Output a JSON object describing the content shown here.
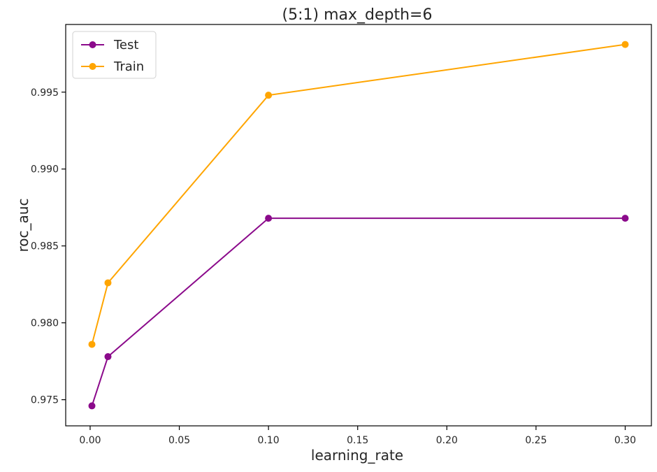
{
  "chart_data": {
    "type": "line",
    "title": "(5:1) max_depth=6",
    "xlabel": "learning_rate",
    "ylabel": "roc_auc",
    "x": [
      0.001,
      0.01,
      0.1,
      0.3
    ],
    "xlim": [
      -0.0137,
      0.3147
    ],
    "ylim": [
      0.9733,
      0.9994
    ],
    "xticks": [
      0.0,
      0.05,
      0.1,
      0.15,
      0.2,
      0.25,
      0.3
    ],
    "xtick_labels": [
      "0.00",
      "0.05",
      "0.10",
      "0.15",
      "0.20",
      "0.25",
      "0.30"
    ],
    "yticks": [
      0.975,
      0.98,
      0.985,
      0.99,
      0.995
    ],
    "ytick_labels": [
      "0.975",
      "0.980",
      "0.985",
      "0.990",
      "0.995"
    ],
    "grid": false,
    "legend_position": "upper-left",
    "series": [
      {
        "name": "Test",
        "color": "#8b0a8b",
        "values": [
          0.9746,
          0.9778,
          0.9868,
          0.9868
        ]
      },
      {
        "name": "Train",
        "color": "#ffa500",
        "values": [
          0.9786,
          0.9826,
          0.9948,
          0.9981
        ]
      }
    ]
  }
}
